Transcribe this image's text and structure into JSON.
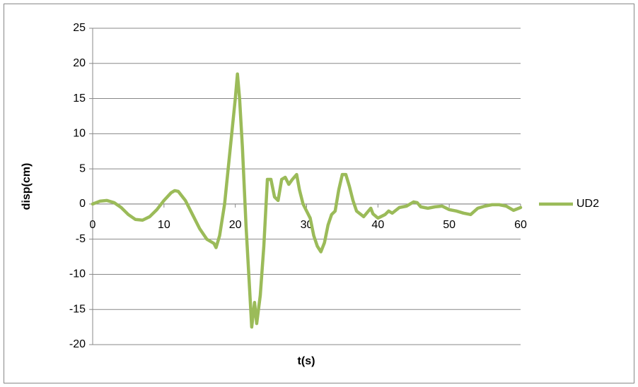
{
  "chart_data": {
    "type": "line",
    "xlabel": "t(s)",
    "ylabel": "disp(cm)",
    "x": [
      0,
      1,
      2,
      3,
      4,
      5,
      6,
      7,
      8,
      9,
      10,
      11,
      11.5,
      12,
      13,
      14,
      15,
      16,
      17,
      17.3,
      17.8,
      18.5,
      19,
      19.5,
      20,
      20.3,
      20.6,
      21,
      21.5,
      22,
      22.3,
      22.7,
      23,
      23.5,
      24,
      24.5,
      25,
      25.5,
      26,
      26.5,
      27,
      27.5,
      28,
      28.6,
      29,
      29.5,
      30,
      30.5,
      31,
      31.5,
      32,
      32.5,
      33,
      33.5,
      34,
      34.5,
      35,
      35.5,
      36,
      36.5,
      37,
      38,
      38.5,
      39,
      39.3,
      40,
      41,
      41.5,
      42,
      43,
      44,
      45,
      45.5,
      46,
      47,
      48,
      49,
      50,
      51,
      52,
      53,
      54,
      55,
      56,
      57,
      58,
      59,
      60
    ],
    "series": [
      {
        "name": "UD2",
        "color": "#9bbb59",
        "values": [
          0,
          0.4,
          0.5,
          0.2,
          -0.5,
          -1.5,
          -2.2,
          -2.3,
          -1.8,
          -0.8,
          0.5,
          1.6,
          1.9,
          1.8,
          0.5,
          -1.5,
          -3.5,
          -5,
          -5.6,
          -6.2,
          -4.5,
          0,
          5,
          10,
          15,
          18.5,
          15,
          8,
          -3,
          -12,
          -17.5,
          -14,
          -17,
          -13,
          -6,
          3.5,
          3.5,
          1,
          0.5,
          3.5,
          3.8,
          2.8,
          3.5,
          4.2,
          2,
          0,
          -1,
          -2,
          -4.5,
          -6,
          -6.8,
          -5.5,
          -3,
          -1.5,
          -1,
          2,
          4.2,
          4.2,
          2.5,
          0.5,
          -1,
          -1.8,
          -1.2,
          -0.6,
          -1.4,
          -2,
          -1.5,
          -1,
          -1.3,
          -0.5,
          -0.3,
          0.3,
          0.2,
          -0.4,
          -0.6,
          -0.4,
          -0.3,
          -0.8,
          -1,
          -1.3,
          -1.5,
          -0.6,
          -0.3,
          -0.1,
          -0.1,
          -0.3,
          -0.9,
          -0.5
        ]
      }
    ],
    "xlim": [
      0,
      60
    ],
    "xticks": [
      0,
      10,
      20,
      30,
      40,
      50,
      60
    ],
    "ylim": [
      -20,
      25
    ],
    "yticks": [
      -20,
      -15,
      -10,
      -5,
      0,
      5,
      10,
      15,
      20,
      25
    ],
    "grid": true,
    "legend": "right"
  }
}
